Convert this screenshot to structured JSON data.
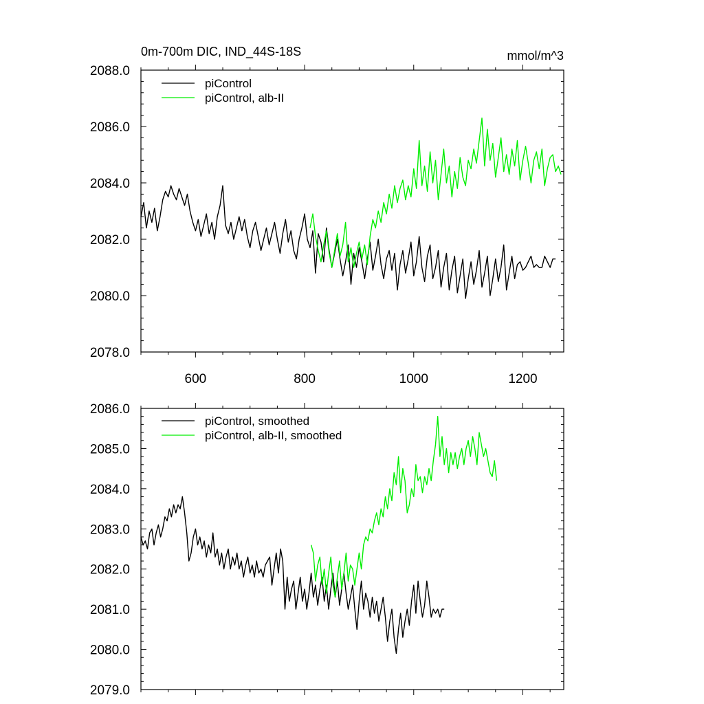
{
  "chart_data": [
    {
      "type": "line",
      "title_left": "0m-700m DIC, IND_44S-18S",
      "title_right": "mmol/m^3",
      "xlim": [
        500,
        1275
      ],
      "ylim": [
        2078,
        2088
      ],
      "x_ticks": [
        600,
        800,
        1000,
        1200
      ],
      "x_tick_labels": [
        "600",
        "800",
        "1000",
        "1200"
      ],
      "y_ticks": [
        2078,
        2080,
        2082,
        2084,
        2086,
        2088
      ],
      "y_tick_labels": [
        "2078.0",
        "2080.0",
        "2082.0",
        "2084.0",
        "2086.0",
        "2088.0"
      ],
      "legend_position": "top-left",
      "series": [
        {
          "name": "piControl",
          "color": "#000000",
          "x_start": 500,
          "x_step": 5,
          "values": [
            2082.8,
            2083.3,
            2082.4,
            2083.0,
            2082.6,
            2083.1,
            2082.3,
            2082.8,
            2083.4,
            2083.7,
            2083.5,
            2083.9,
            2083.6,
            2083.4,
            2083.8,
            2083.5,
            2083.2,
            2083.6,
            2083.0,
            2082.6,
            2082.3,
            2082.7,
            2082.1,
            2082.5,
            2082.9,
            2082.2,
            2082.6,
            2082.0,
            2082.8,
            2083.2,
            2083.9,
            2082.5,
            2082.2,
            2082.6,
            2082.0,
            2082.4,
            2082.8,
            2082.3,
            2082.7,
            2082.1,
            2081.7,
            2082.3,
            2082.6,
            2082.1,
            2081.6,
            2082.0,
            2082.4,
            2081.8,
            2082.2,
            2082.6,
            2082.0,
            2081.5,
            2082.2,
            2082.7,
            2081.9,
            2082.3,
            2081.6,
            2081.3,
            2082.0,
            2082.4,
            2082.9,
            2082.0,
            2081.7,
            2082.3,
            2080.8,
            2082.2,
            2081.9,
            2081.2,
            2082.4,
            2081.6,
            2081.0,
            2081.5,
            2082.0,
            2081.3,
            2080.7,
            2081.2,
            2081.8,
            2080.4,
            2081.5,
            2081.0,
            2081.7,
            2081.2,
            2080.6,
            2081.3,
            2081.9,
            2080.9,
            2081.4,
            2082.0,
            2081.1,
            2080.6,
            2081.3,
            2081.6,
            2080.9,
            2081.5,
            2080.2,
            2081.1,
            2081.6,
            2080.8,
            2081.3,
            2081.9,
            2080.7,
            2081.2,
            2082.1,
            2081.0,
            2080.5,
            2081.4,
            2081.8,
            2080.6,
            2081.0,
            2081.6,
            2080.3,
            2081.0,
            2081.5,
            2080.2,
            2080.9,
            2081.4,
            2080.1,
            2080.7,
            2081.3,
            2079.9,
            2080.6,
            2081.2,
            2080.4,
            2080.9,
            2081.6,
            2080.3,
            2080.8,
            2081.4,
            2080.0,
            2080.6,
            2081.3,
            2080.5,
            2081.0,
            2081.8,
            2080.2,
            2080.8,
            2081.4,
            2080.6,
            2081.1,
            2081.2,
            2080.9,
            2081.0,
            2081.2,
            2081.4,
            2081.0,
            2081.1,
            2081.0,
            2081.0,
            2081.4,
            2081.2,
            2081.0,
            2081.3,
            2081.3
          ]
        },
        {
          "name": "piControl, alb-II",
          "color": "#00ee00",
          "x_start": 810,
          "x_step": 5,
          "values": [
            2082.4,
            2082.9,
            2082.1,
            2081.6,
            2081.2,
            2081.8,
            2082.3,
            2081.5,
            2081.0,
            2081.6,
            2082.2,
            2081.4,
            2081.8,
            2082.6,
            2081.2,
            2081.7,
            2081.0,
            2081.5,
            2081.9,
            2081.3,
            2081.8,
            2081.1,
            2082.1,
            2082.7,
            2082.4,
            2083.0,
            2082.6,
            2083.3,
            2082.9,
            2083.6,
            2083.1,
            2083.9,
            2083.3,
            2083.8,
            2084.1,
            2083.4,
            2083.9,
            2083.5,
            2084.5,
            2083.8,
            2085.5,
            2083.9,
            2084.6,
            2083.7,
            2085.1,
            2084.0,
            2084.8,
            2083.4,
            2084.3,
            2085.2,
            2084.0,
            2084.6,
            2083.5,
            2084.4,
            2083.8,
            2084.9,
            2084.2,
            2083.9,
            2084.8,
            2084.5,
            2085.2,
            2084.7,
            2085.5,
            2086.3,
            2084.6,
            2085.9,
            2084.8,
            2085.4,
            2084.2,
            2084.9,
            2085.6,
            2084.4,
            2085.0,
            2084.3,
            2085.2,
            2084.6,
            2085.5,
            2084.1,
            2084.8,
            2085.3,
            2084.7,
            2084.0,
            2084.8,
            2085.1,
            2084.5,
            2085.2,
            2083.9,
            2084.5,
            2084.9,
            2085.0,
            2084.4,
            2084.6,
            2084.3
          ]
        }
      ]
    },
    {
      "type": "line",
      "xlim": [
        500,
        1275
      ],
      "ylim": [
        2079,
        2086
      ],
      "x_ticks": [
        600,
        800,
        1000,
        1200
      ],
      "y_ticks": [
        2079,
        2080,
        2081,
        2082,
        2083,
        2084,
        2085,
        2086
      ],
      "y_tick_labels": [
        "2079.0",
        "2080.0",
        "2081.0",
        "2082.0",
        "2083.0",
        "2084.0",
        "2085.0",
        "2086.0"
      ],
      "legend_position": "top-left",
      "series": [
        {
          "name": "piControl, smoothed",
          "color": "#000000",
          "x_start": 500,
          "x_step": 4,
          "values": [
            2082.8,
            2082.6,
            2082.7,
            2082.5,
            2082.9,
            2083.0,
            2082.6,
            2082.9,
            2083.1,
            2082.8,
            2083.0,
            2083.3,
            2083.2,
            2083.5,
            2083.3,
            2083.6,
            2083.4,
            2083.6,
            2083.5,
            2083.8,
            2083.4,
            2082.9,
            2082.2,
            2082.4,
            2082.8,
            2083.0,
            2082.6,
            2082.8,
            2082.5,
            2082.7,
            2082.3,
            2082.6,
            2082.4,
            2082.9,
            2082.3,
            2082.5,
            2082.1,
            2082.4,
            2082.0,
            2082.3,
            2082.5,
            2082.0,
            2082.3,
            2082.1,
            2082.4,
            2082.0,
            2082.2,
            2081.8,
            2082.1,
            2082.3,
            2081.9,
            2082.1,
            2081.8,
            2082.2,
            2081.9,
            2082.0,
            2081.8,
            2082.1,
            2082.2,
            2082.3,
            2081.6,
            2082.0,
            2082.4,
            2081.9,
            2082.5,
            2082.2,
            2081.0,
            2081.8,
            2081.2,
            2081.5,
            2081.7,
            2081.0,
            2081.4,
            2081.8,
            2081.2,
            2081.5,
            2081.0,
            2081.4,
            2081.9,
            2081.3,
            2081.6,
            2081.1,
            2081.5,
            2081.8,
            2081.2,
            2081.6,
            2081.0,
            2081.5,
            2081.9,
            2081.3,
            2081.7,
            2081.1,
            2081.5,
            2081.9,
            2081.4,
            2081.0,
            2081.3,
            2081.6,
            2081.0,
            2080.5,
            2081.2,
            2081.7,
            2081.0,
            2081.4,
            2081.2,
            2080.8,
            2081.3,
            2080.9,
            2081.2,
            2080.7,
            2081.0,
            2081.3,
            2080.8,
            2080.2,
            2080.7,
            2081.0,
            2080.3,
            2079.9,
            2080.5,
            2080.9,
            2080.3,
            2080.7,
            2081.0,
            2080.6,
            2081.2,
            2081.6,
            2080.9,
            2081.7,
            2081.2,
            2080.8,
            2081.1,
            2081.7,
            2081.3,
            2080.8,
            2081.0,
            2080.9,
            2081.0,
            2080.8,
            2081.0,
            2081.0
          ]
        },
        {
          "name": "piControl, alb-II, smoothed",
          "color": "#00ee00",
          "x_start": 812,
          "x_step": 4,
          "values": [
            2082.6,
            2082.4,
            2081.7,
            2082.1,
            2082.3,
            2081.6,
            2082.0,
            2081.4,
            2081.9,
            2082.3,
            2081.6,
            2081.3,
            2081.8,
            2082.2,
            2081.5,
            2081.9,
            2082.4,
            2081.7,
            2082.1,
            2082.0,
            2081.6,
            2082.0,
            2082.4,
            2082.0,
            2082.6,
            2082.8,
            2082.7,
            2083.0,
            2082.9,
            2083.2,
            2083.4,
            2083.1,
            2083.5,
            2083.3,
            2083.8,
            2083.5,
            2084.0,
            2083.7,
            2084.4,
            2084.1,
            2084.8,
            2083.9,
            2084.5,
            2084.2,
            2083.4,
            2083.6,
            2084.0,
            2083.8,
            2084.6,
            2084.2,
            2084.3,
            2083.9,
            2084.3,
            2084.1,
            2084.5,
            2084.2,
            2084.7,
            2085.1,
            2085.8,
            2084.8,
            2085.3,
            2084.6,
            2085.0,
            2084.4,
            2084.9,
            2084.6,
            2084.9,
            2084.5,
            2084.8,
            2085.0,
            2084.6,
            2085.0,
            2085.2,
            2084.8,
            2085.3,
            2085.0,
            2084.6,
            2085.4,
            2085.1,
            2084.8,
            2085.0,
            2084.7,
            2084.4,
            2084.3,
            2084.7,
            2084.2
          ]
        }
      ]
    }
  ]
}
